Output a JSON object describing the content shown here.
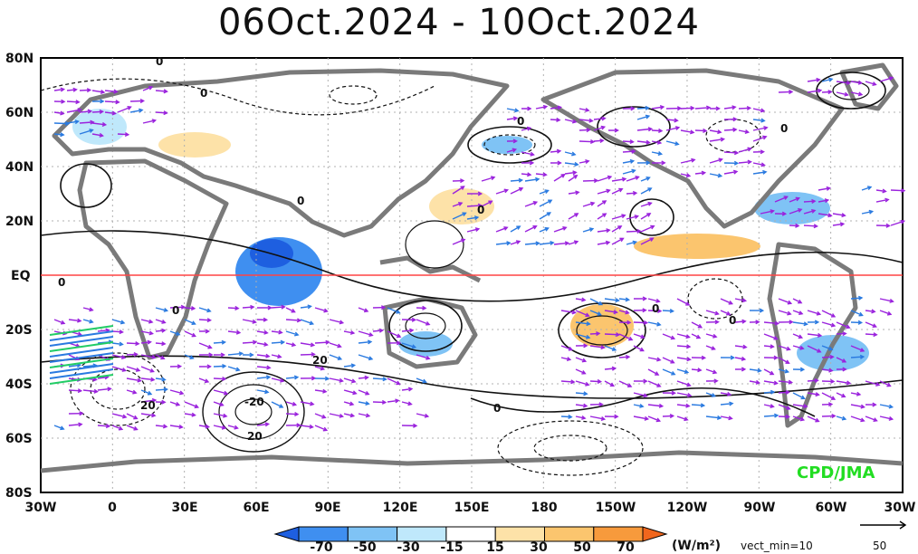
{
  "title": "06Oct.2024 - 10Oct.2024",
  "lat_labels": [
    "80N",
    "60N",
    "40N",
    "20N",
    "EQ",
    "20S",
    "40S",
    "60S",
    "80S"
  ],
  "lon_labels": [
    "30W",
    "0",
    "30E",
    "60E",
    "90E",
    "120E",
    "150E",
    "180",
    "150W",
    "120W",
    "90W",
    "60W",
    "30W"
  ],
  "contour_labels": [
    "0",
    "0",
    "0",
    "0",
    "0",
    "0",
    "0",
    "0",
    "0",
    "0",
    "20",
    "20",
    "-20",
    "20",
    "0"
  ],
  "colorbar": {
    "labels": [
      "-70",
      "-50",
      "-30",
      "-15",
      "15",
      "30",
      "50",
      "70"
    ],
    "colors": [
      "#1e5fe0",
      "#3f8ff0",
      "#7fc3f5",
      "#bfe8fb",
      "#ffffff",
      "#fde2a8",
      "#fbc56e",
      "#f79a3c",
      "#f0661d"
    ],
    "unit": "(W/m²)",
    "vect_min": "vect_min=10"
  },
  "ref_vector": {
    "value": "50"
  },
  "credit": "CPD/JMA",
  "colors": {
    "land": "#7a7a7a",
    "equator": "#ff4444",
    "vector_primary": "#9a22dd",
    "vector_strong": "#2a7ae0",
    "vector_strongest": "#22cc66"
  }
}
